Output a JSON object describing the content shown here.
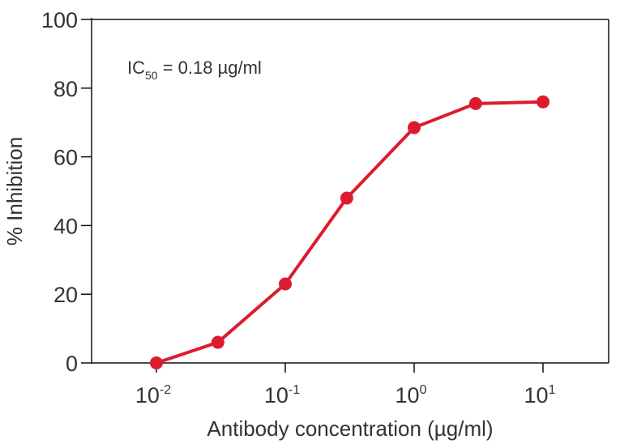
{
  "chart_data": {
    "type": "line",
    "title": "",
    "xlabel": "Antibody concentration (µg/ml)",
    "ylabel": "% Inhibition",
    "x_scale": "log",
    "xlim": [
      0.0045,
      31
    ],
    "ylim": [
      0,
      100
    ],
    "x_ticks": [
      {
        "value": 0.01,
        "base": "10",
        "exp": "-2"
      },
      {
        "value": 0.1,
        "base": "10",
        "exp": "-1"
      },
      {
        "value": 1,
        "base": "10",
        "exp": "0"
      },
      {
        "value": 10,
        "base": "10",
        "exp": "1"
      }
    ],
    "y_ticks": [
      0,
      20,
      40,
      60,
      80,
      100
    ],
    "grid": false,
    "legend": null,
    "annotations": [
      {
        "text": "IC50 = 0.18 µg/ml",
        "prefix": "IC",
        "subscript": "50",
        "suffix": " = 0.18 µg/ml"
      }
    ],
    "series": [
      {
        "name": "% Inhibition",
        "color": "#DC1C2E",
        "x": [
          0.01,
          0.03,
          0.1,
          0.3,
          1,
          3,
          10
        ],
        "values": [
          0,
          6,
          23,
          48,
          68.5,
          75.5,
          76
        ]
      }
    ]
  },
  "colors": {
    "series": "#DC1C2E",
    "axis": "#111111",
    "text": "#333333"
  }
}
